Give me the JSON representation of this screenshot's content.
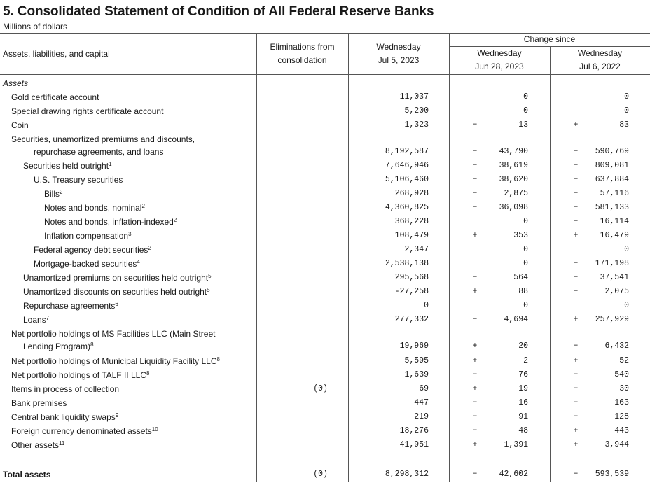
{
  "title": "5. Consolidated Statement of Condition of All Federal Reserve Banks",
  "subtitle": "Millions of dollars",
  "headers": {
    "item": "Assets, liabilities, and capital",
    "elim_1": "Eliminations from",
    "elim_2": "consolidation",
    "cur_1": "Wednesday",
    "cur_2": "Jul 5, 2023",
    "change_since": "Change since",
    "ch1_1": "Wednesday",
    "ch1_2": "Jun 28, 2023",
    "ch2_1": "Wednesday",
    "ch2_2": "Jul 6, 2022"
  },
  "rows": [
    {
      "label": "Assets",
      "indent": 0,
      "italic": true
    },
    {
      "label": "Gold certificate account",
      "indent": 1,
      "value": "11,037",
      "s1": "",
      "c1": "0",
      "s2": "",
      "c2": "0"
    },
    {
      "label": "Special drawing rights certificate account",
      "indent": 1,
      "value": "5,200",
      "s1": "",
      "c1": "0",
      "s2": "",
      "c2": "0"
    },
    {
      "label": "Coin",
      "indent": 1,
      "value": "1,323",
      "s1": "−",
      "c1": "13",
      "s2": "+",
      "c2": "83"
    },
    {
      "label": "Securities, unamortized premiums and discounts,",
      "indent": 1
    },
    {
      "label": "repurchase agreements, and loans",
      "indent": 3,
      "value": "8,192,587",
      "s1": "−",
      "c1": "43,790",
      "s2": "−",
      "c2": "590,769"
    },
    {
      "label": "Securities held outright",
      "sup": "1",
      "indent": 2,
      "value": "7,646,946",
      "s1": "−",
      "c1": "38,619",
      "s2": "−",
      "c2": "809,081"
    },
    {
      "label": "U.S. Treasury securities",
      "indent": 3,
      "value": "5,106,460",
      "s1": "−",
      "c1": "38,620",
      "s2": "−",
      "c2": "637,884"
    },
    {
      "label": "Bills",
      "sup": "2",
      "indent": 4,
      "value": "268,928",
      "s1": "−",
      "c1": "2,875",
      "s2": "−",
      "c2": "57,116"
    },
    {
      "label": "Notes and bonds, nominal",
      "sup": "2",
      "indent": 4,
      "value": "4,360,825",
      "s1": "−",
      "c1": "36,098",
      "s2": "−",
      "c2": "581,133"
    },
    {
      "label": "Notes and bonds, inflation-indexed",
      "sup": "2",
      "indent": 4,
      "value": "368,228",
      "s1": "",
      "c1": "0",
      "s2": "−",
      "c2": "16,114"
    },
    {
      "label": "Inflation compensation",
      "sup": "3",
      "indent": 4,
      "value": "108,479",
      "s1": "+",
      "c1": "353",
      "s2": "+",
      "c2": "16,479"
    },
    {
      "label": "Federal agency debt securities",
      "sup": "2",
      "indent": 3,
      "value": "2,347",
      "s1": "",
      "c1": "0",
      "s2": "",
      "c2": "0"
    },
    {
      "label": "Mortgage-backed securities",
      "sup": "4",
      "indent": 3,
      "value": "2,538,138",
      "s1": "",
      "c1": "0",
      "s2": "−",
      "c2": "171,198"
    },
    {
      "label": "Unamortized premiums on securities held outright",
      "sup": "5",
      "indent": 2,
      "value": "295,568",
      "s1": "−",
      "c1": "564",
      "s2": "−",
      "c2": "37,541"
    },
    {
      "label": "Unamortized discounts on securities held outright",
      "sup": "5",
      "indent": 2,
      "value": "-27,258",
      "s1": "+",
      "c1": "88",
      "s2": "−",
      "c2": "2,075"
    },
    {
      "label": "Repurchase agreements",
      "sup": "6",
      "indent": 2,
      "value": "0",
      "s1": "",
      "c1": "0",
      "s2": "",
      "c2": "0"
    },
    {
      "label": "Loans",
      "sup": "7",
      "indent": 2,
      "value": "277,332",
      "s1": "−",
      "c1": "4,694",
      "s2": "+",
      "c2": "257,929"
    },
    {
      "label": "Net portfolio holdings of MS Facilities LLC (Main Street",
      "indent": 1
    },
    {
      "label": "Lending Program)",
      "sup": "8",
      "indent": 2,
      "value": "19,969",
      "s1": "+",
      "c1": "20",
      "s2": "−",
      "c2": "6,432"
    },
    {
      "label": "Net portfolio holdings of Municipal Liquidity Facility LLC",
      "sup": "8",
      "indent": 1,
      "value": "5,595",
      "s1": "+",
      "c1": "2",
      "s2": "+",
      "c2": "52"
    },
    {
      "label": "Net portfolio holdings of TALF II LLC",
      "sup": "8",
      "indent": 1,
      "value": "1,639",
      "s1": "−",
      "c1": "76",
      "s2": "−",
      "c2": "540"
    },
    {
      "label": "Items in process of collection",
      "indent": 1,
      "elim": "(0)",
      "value": "69",
      "s1": "+",
      "c1": "19",
      "s2": "−",
      "c2": "30"
    },
    {
      "label": "Bank premises",
      "indent": 1,
      "value": "447",
      "s1": "−",
      "c1": "16",
      "s2": "−",
      "c2": "163"
    },
    {
      "label": "Central bank liquidity swaps",
      "sup": "9",
      "indent": 1,
      "value": "219",
      "s1": "−",
      "c1": "91",
      "s2": "−",
      "c2": "128"
    },
    {
      "label": "Foreign currency denominated assets",
      "sup": "10",
      "indent": 1,
      "value": "18,276",
      "s1": "−",
      "c1": "48",
      "s2": "+",
      "c2": "443"
    },
    {
      "label": "Other assets",
      "sup": "11",
      "indent": 1,
      "value": "41,951",
      "s1": "+",
      "c1": "1,391",
      "s2": "+",
      "c2": "3,944"
    }
  ],
  "total": {
    "label": "Total assets",
    "elim": "(0)",
    "value": "8,298,312",
    "s1": "−",
    "c1": "42,602",
    "s2": "−",
    "c2": "593,539"
  }
}
